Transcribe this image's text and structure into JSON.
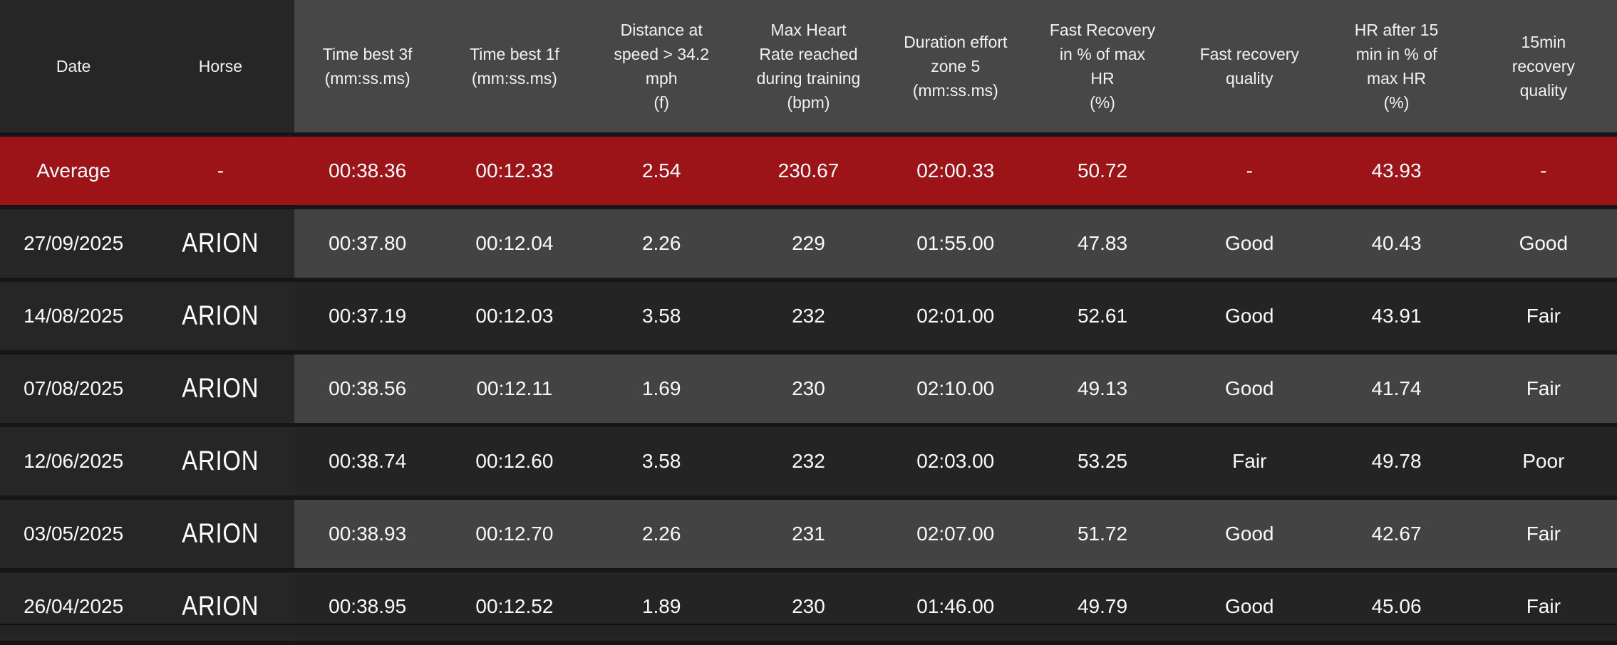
{
  "colors": {
    "page_bg": "#161616",
    "header_bg": "#474747",
    "header_frozen_bg": "#262626",
    "header_text": "#f1f1f1",
    "average_bg": "#9c1418",
    "frozen_bg": "#262626",
    "row_light_bg": "#434343",
    "row_dark_bg": "#242424",
    "bottom_bar_bg": "#232323",
    "text": "#f5f5f5"
  },
  "table": {
    "columns": [
      {
        "id": "date",
        "label": "Date"
      },
      {
        "id": "horse",
        "label": "Horse"
      },
      {
        "id": "time-best-3f",
        "label": "Time best 3f\n(mm:ss.ms)"
      },
      {
        "id": "time-best-1f",
        "label": "Time best 1f\n(mm:ss.ms)"
      },
      {
        "id": "distance-at-speed",
        "label": "Distance at\nspeed > 34.2\nmph\n(f)"
      },
      {
        "id": "max-heart-rate",
        "label": "Max Heart\nRate reached\nduring training\n(bpm)"
      },
      {
        "id": "duration-effort-zone-5",
        "label": "Duration effort\nzone 5\n(mm:ss.ms)"
      },
      {
        "id": "fast-recovery-pct",
        "label": "Fast Recovery\nin % of max\nHR\n(%)"
      },
      {
        "id": "fast-recovery-quality",
        "label": "Fast recovery\nquality"
      },
      {
        "id": "hr-after-15min-pct",
        "label": "HR after 15\nmin in % of\nmax HR\n(%)"
      },
      {
        "id": "recovery-15min-quality",
        "label": "15min\nrecovery\nquality"
      }
    ],
    "average_row": {
      "cells": [
        "Average",
        "-",
        "00:38.36",
        "00:12.33",
        "2.54",
        "230.67",
        "02:00.33",
        "50.72",
        "-",
        "43.93",
        "-"
      ]
    },
    "rows": [
      {
        "cells": [
          "27/09/2025",
          "ARION",
          "00:37.80",
          "00:12.04",
          "2.26",
          "229",
          "01:55.00",
          "47.83",
          "Good",
          "40.43",
          "Good"
        ]
      },
      {
        "cells": [
          "14/08/2025",
          "ARION",
          "00:37.19",
          "00:12.03",
          "3.58",
          "232",
          "02:01.00",
          "52.61",
          "Good",
          "43.91",
          "Fair"
        ]
      },
      {
        "cells": [
          "07/08/2025",
          "ARION",
          "00:38.56",
          "00:12.11",
          "1.69",
          "230",
          "02:10.00",
          "49.13",
          "Good",
          "41.74",
          "Fair"
        ]
      },
      {
        "cells": [
          "12/06/2025",
          "ARION",
          "00:38.74",
          "00:12.60",
          "3.58",
          "232",
          "02:03.00",
          "53.25",
          "Fair",
          "49.78",
          "Poor"
        ]
      },
      {
        "cells": [
          "03/05/2025",
          "ARION",
          "00:38.93",
          "00:12.70",
          "2.26",
          "231",
          "02:07.00",
          "51.72",
          "Good",
          "42.67",
          "Fair"
        ]
      },
      {
        "cells": [
          "26/04/2025",
          "ARION",
          "00:38.95",
          "00:12.52",
          "1.89",
          "230",
          "01:46.00",
          "49.79",
          "Good",
          "45.06",
          "Fair"
        ]
      }
    ]
  }
}
